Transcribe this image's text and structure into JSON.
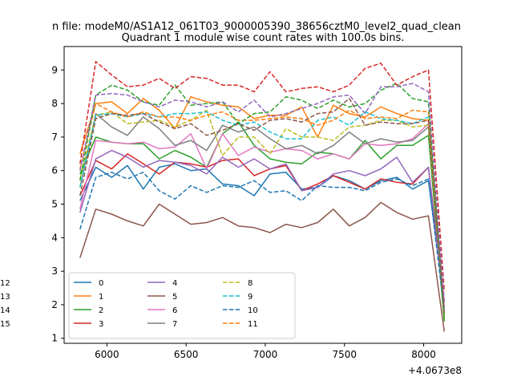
{
  "chart_data": {
    "type": "line",
    "suptitle": "n file: modeM0/AS1A12_061T03_9000005390_38656cztM0_level2_quad_clean",
    "title": "Quadrant 1 module wise count rates with 100.0s bins.",
    "xlabel": "",
    "ylabel": "",
    "x_offset_label": "+4.0673e8",
    "xlim": [
      5730,
      8240
    ],
    "ylim": [
      0.85,
      9.7
    ],
    "xticks": [
      6000,
      6500,
      7000,
      7500,
      8000
    ],
    "xtick_labels": [
      "6000",
      "6500",
      "7000",
      "7500",
      "8000"
    ],
    "yticks": [
      1,
      2,
      3,
      4,
      5,
      6,
      7,
      8,
      9
    ],
    "ytick_labels": [
      "1",
      "2",
      "3",
      "4",
      "5",
      "6",
      "7",
      "8",
      "9"
    ],
    "legend_position": "lower-left",
    "legend_ncol": 3,
    "x": [
      5830,
      5930,
      6030,
      6130,
      6230,
      6330,
      6430,
      6530,
      6630,
      6730,
      6830,
      6930,
      7030,
      7130,
      7230,
      7330,
      7430,
      7530,
      7630,
      7730,
      7830,
      7930,
      8030,
      8130
    ],
    "series": [
      {
        "name": "0",
        "color": "#1f77b4",
        "dash": "solid",
        "values": [
          5.1,
          6.1,
          5.8,
          6.15,
          5.45,
          6.1,
          6.2,
          6.0,
          6.05,
          5.6,
          5.55,
          5.25,
          5.9,
          5.95,
          5.45,
          5.5,
          5.85,
          5.7,
          5.45,
          5.7,
          5.8,
          5.45,
          5.7,
          2.1
        ]
      },
      {
        "name": "1",
        "color": "#ff7f0e",
        "dash": "solid",
        "values": [
          6.5,
          8.0,
          8.05,
          7.7,
          8.15,
          7.8,
          7.25,
          8.2,
          8.05,
          7.95,
          7.9,
          7.55,
          7.65,
          7.65,
          7.9,
          7.0,
          7.95,
          7.7,
          7.6,
          7.9,
          7.7,
          7.55,
          7.5,
          1.6
        ]
      },
      {
        "name": "2",
        "color": "#2ca02c",
        "dash": "solid",
        "values": [
          5.9,
          7.0,
          6.85,
          6.8,
          6.8,
          6.35,
          6.6,
          6.4,
          6.1,
          7.1,
          7.45,
          6.75,
          6.35,
          6.25,
          6.2,
          6.55,
          6.5,
          6.35,
          6.9,
          6.35,
          6.75,
          6.75,
          7.05,
          1.5
        ]
      },
      {
        "name": "3",
        "color": "#d62728",
        "dash": "solid",
        "values": [
          5.25,
          6.3,
          6.05,
          6.5,
          6.2,
          5.9,
          6.25,
          6.2,
          6.1,
          6.3,
          6.35,
          5.85,
          6.05,
          6.15,
          5.4,
          5.6,
          5.85,
          5.65,
          5.45,
          5.75,
          5.65,
          5.6,
          6.1,
          2.05
        ]
      },
      {
        "name": "4",
        "color": "#9467bd",
        "dash": "solid",
        "values": [
          4.75,
          6.35,
          6.6,
          6.4,
          6.1,
          6.3,
          6.25,
          6.15,
          5.9,
          6.4,
          6.1,
          6.35,
          6.05,
          6.2,
          5.4,
          5.5,
          5.9,
          6.0,
          5.85,
          6.05,
          6.4,
          5.65,
          6.1,
          1.9
        ]
      },
      {
        "name": "5",
        "color": "#8c564b",
        "dash": "solid",
        "values": [
          3.4,
          4.85,
          4.7,
          4.5,
          4.35,
          5.0,
          4.7,
          4.4,
          4.45,
          4.6,
          4.35,
          4.3,
          4.15,
          4.4,
          4.3,
          4.45,
          4.85,
          4.35,
          4.6,
          5.05,
          4.75,
          4.55,
          4.65,
          1.2
        ]
      },
      {
        "name": "6",
        "color": "#e377c2",
        "dash": "solid",
        "values": [
          4.85,
          6.9,
          6.85,
          6.8,
          6.85,
          6.65,
          6.7,
          7.1,
          6.05,
          7.1,
          6.45,
          6.7,
          6.55,
          6.65,
          6.6,
          6.35,
          6.5,
          6.35,
          6.8,
          6.75,
          6.8,
          6.95,
          7.4,
          2.05
        ]
      },
      {
        "name": "7",
        "color": "#7f7f7f",
        "dash": "solid",
        "values": [
          5.5,
          7.7,
          7.3,
          7.05,
          7.6,
          7.25,
          6.75,
          6.9,
          6.6,
          7.35,
          7.15,
          7.3,
          6.95,
          6.65,
          6.75,
          6.5,
          6.75,
          7.15,
          6.8,
          6.95,
          6.85,
          6.9,
          7.3,
          1.7
        ]
      },
      {
        "name": "8",
        "color": "#bcbd22",
        "dash": "dashed",
        "values": [
          5.75,
          7.65,
          7.75,
          7.4,
          7.45,
          7.5,
          7.3,
          7.5,
          7.8,
          6.45,
          7.0,
          7.0,
          6.5,
          7.25,
          7.0,
          7.0,
          6.9,
          7.3,
          7.35,
          7.5,
          7.5,
          7.3,
          7.35,
          1.7
        ]
      },
      {
        "name": "9",
        "color": "#17becf",
        "dash": "dashed",
        "values": [
          5.5,
          7.65,
          7.7,
          7.6,
          7.7,
          7.6,
          7.7,
          7.7,
          7.75,
          7.5,
          7.35,
          7.45,
          7.15,
          6.95,
          6.95,
          7.5,
          7.6,
          7.35,
          7.75,
          7.55,
          7.5,
          7.4,
          7.6,
          1.75
        ]
      },
      {
        "name": "10",
        "color": "#1f77b4",
        "dash": "dashed",
        "values": [
          4.25,
          5.8,
          5.95,
          5.75,
          5.95,
          5.4,
          5.15,
          5.55,
          5.35,
          5.55,
          5.5,
          5.7,
          5.35,
          5.4,
          5.1,
          5.55,
          5.5,
          5.5,
          5.4,
          5.65,
          5.75,
          5.55,
          5.75,
          1.8
        ]
      },
      {
        "name": "11",
        "color": "#ff7f0e",
        "dash": "dashed",
        "values": [
          6.05,
          8.0,
          7.75,
          7.6,
          7.75,
          7.6,
          7.6,
          7.5,
          7.65,
          7.75,
          7.5,
          7.5,
          7.55,
          7.6,
          7.55,
          7.35,
          7.5,
          7.8,
          7.55,
          7.6,
          7.55,
          7.8,
          7.75,
          1.7
        ]
      },
      {
        "name": "12",
        "color": "#2ca02c",
        "dash": "dashed",
        "values": [
          5.7,
          8.25,
          8.55,
          8.4,
          8.05,
          7.95,
          8.55,
          7.95,
          8.0,
          8.05,
          7.4,
          7.7,
          7.75,
          8.2,
          8.1,
          7.85,
          8.1,
          7.9,
          8.0,
          8.4,
          8.6,
          8.15,
          8.05,
          1.55
        ]
      },
      {
        "name": "13",
        "color": "#d62728",
        "dash": "dashed",
        "values": [
          6.2,
          9.25,
          8.85,
          8.5,
          8.55,
          8.75,
          8.45,
          8.8,
          8.75,
          8.55,
          8.55,
          8.35,
          8.95,
          8.35,
          8.45,
          8.5,
          8.35,
          8.55,
          9.05,
          9.2,
          8.55,
          8.8,
          9.0,
          2.4
        ]
      },
      {
        "name": "14",
        "color": "#9467bd",
        "dash": "dashed",
        "values": [
          6.0,
          8.25,
          8.3,
          8.25,
          8.05,
          7.9,
          8.1,
          8.05,
          7.9,
          8.05,
          7.75,
          8.1,
          7.6,
          7.7,
          7.85,
          8.0,
          8.2,
          8.25,
          7.7,
          8.5,
          8.5,
          8.6,
          8.35,
          2.05
        ]
      },
      {
        "name": "15",
        "color": "#8c564b",
        "dash": "dashed",
        "values": [
          5.25,
          7.55,
          7.7,
          7.65,
          7.7,
          7.45,
          7.25,
          7.4,
          7.05,
          7.2,
          7.4,
          7.2,
          7.5,
          7.55,
          7.45,
          7.7,
          7.75,
          8.15,
          7.35,
          7.45,
          7.4,
          7.4,
          7.5,
          1.75
        ]
      }
    ]
  }
}
